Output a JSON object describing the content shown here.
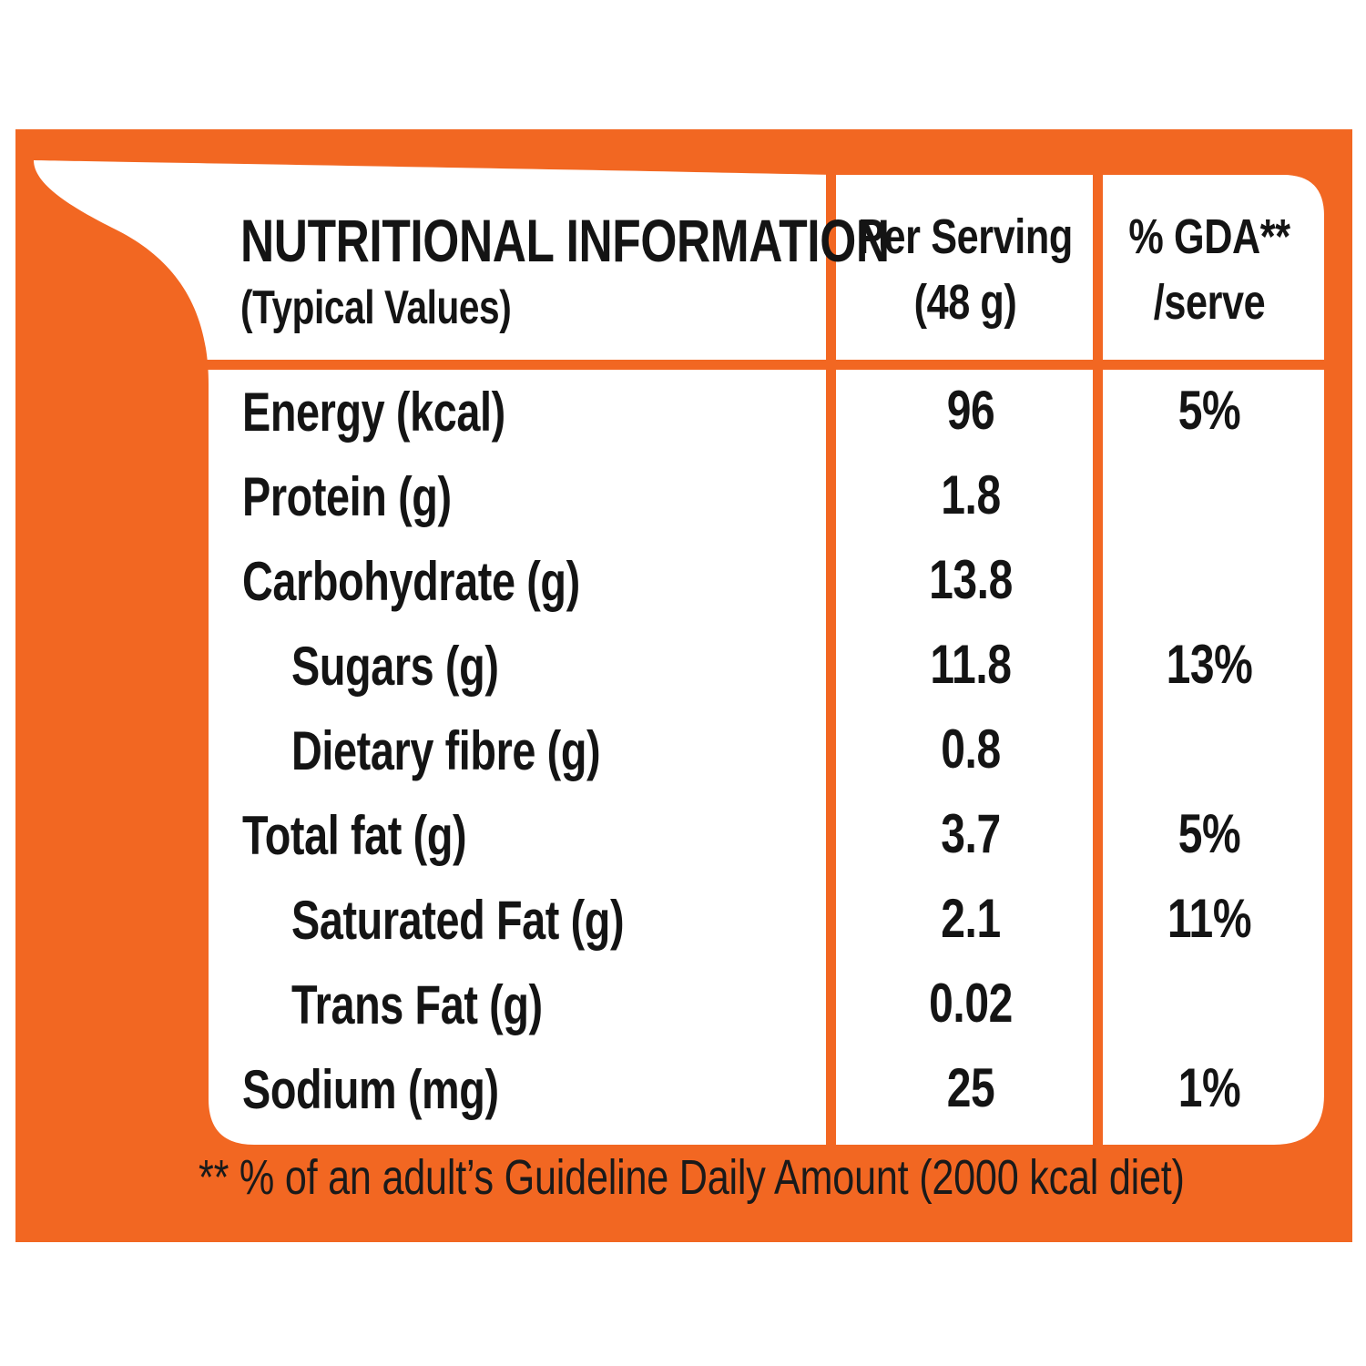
{
  "colors": {
    "panel": "#f26722",
    "card": "#ffffff",
    "text": "#141414"
  },
  "header": {
    "title": "NUTRITIONAL INFORMATION",
    "subtitle": "(Typical Values)",
    "per_serving": [
      "Per Serving",
      "(48 g)"
    ],
    "gda": [
      "% GDA**",
      "/serve"
    ]
  },
  "rows": [
    {
      "label": "Energy (kcal)",
      "per_serving": "96",
      "gda": "5%"
    },
    {
      "label": "Protein (g)",
      "per_serving": "1.8",
      "gda": ""
    },
    {
      "label": "Carbohydrate (g)",
      "per_serving": "13.8",
      "gda": ""
    },
    {
      "label": "Sugars (g)",
      "per_serving": "11.8",
      "gda": "13%"
    },
    {
      "label": "Dietary fibre (g)",
      "per_serving": "0.8",
      "gda": ""
    },
    {
      "label": "Total fat (g)",
      "per_serving": "3.7",
      "gda": "5%"
    },
    {
      "label": "Saturated Fat (g)",
      "per_serving": "2.1",
      "gda": "11%"
    },
    {
      "label": "Trans Fat (g)",
      "per_serving": "0.02",
      "gda": ""
    },
    {
      "label": "Sodium (mg)",
      "per_serving": "25",
      "gda": "1%"
    }
  ],
  "footnote": "** % of an adult’s Guideline Daily Amount (2000 kcal diet)"
}
